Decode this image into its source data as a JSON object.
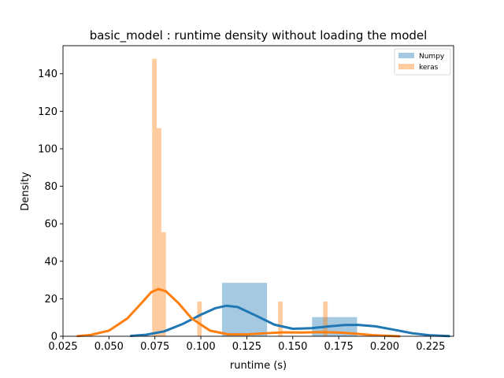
{
  "chart_data": {
    "type": "histogram+kde",
    "title": "basic_model : runtime density without loading the model",
    "xlabel": "runtime (s)",
    "ylabel": "Density",
    "xlim": [
      0.025,
      0.2375
    ],
    "ylim": [
      0,
      155
    ],
    "xticks": [
      0.025,
      0.05,
      0.075,
      0.1,
      0.125,
      0.15,
      0.175,
      0.2,
      0.225
    ],
    "xtick_labels": [
      "0.025",
      "0.050",
      "0.075",
      "0.100",
      "0.125",
      "0.150",
      "0.175",
      "0.200",
      "0.225"
    ],
    "yticks": [
      0,
      20,
      40,
      60,
      80,
      100,
      120,
      140
    ],
    "ytick_labels": [
      "0",
      "20",
      "40",
      "60",
      "80",
      "100",
      "120",
      "140"
    ],
    "grid": false,
    "legend_position": "top-right",
    "series": [
      {
        "name": "Numpy",
        "hist_color": "#1f77b4",
        "kde_color": "#1f77b4",
        "bars": [
          {
            "x0": 0.1115,
            "x1": 0.136,
            "height": 28.5
          },
          {
            "x0": 0.1605,
            "x1": 0.185,
            "height": 10.2
          }
        ],
        "kde": [
          [
            0.062,
            0.2
          ],
          [
            0.07,
            0.8
          ],
          [
            0.08,
            2.6
          ],
          [
            0.09,
            6.5
          ],
          [
            0.1,
            11.5
          ],
          [
            0.108,
            15.0
          ],
          [
            0.114,
            16.3
          ],
          [
            0.12,
            15.6
          ],
          [
            0.13,
            11.0
          ],
          [
            0.14,
            6.2
          ],
          [
            0.15,
            4.0
          ],
          [
            0.16,
            4.3
          ],
          [
            0.17,
            5.3
          ],
          [
            0.178,
            6.0
          ],
          [
            0.185,
            6.1
          ],
          [
            0.195,
            5.3
          ],
          [
            0.205,
            3.5
          ],
          [
            0.215,
            1.6
          ],
          [
            0.225,
            0.5
          ],
          [
            0.235,
            0.1
          ]
        ]
      },
      {
        "name": "keras",
        "hist_color": "#ff7f0e",
        "kde_color": "#ff7f0e",
        "bars": [
          {
            "x0": 0.0735,
            "x1": 0.076,
            "height": 148.0
          },
          {
            "x0": 0.076,
            "x1": 0.0785,
            "height": 111.0
          },
          {
            "x0": 0.0785,
            "x1": 0.081,
            "height": 55.5
          },
          {
            "x0": 0.098,
            "x1": 0.1005,
            "height": 18.5
          },
          {
            "x0": 0.142,
            "x1": 0.1445,
            "height": 18.5
          },
          {
            "x0": 0.1665,
            "x1": 0.169,
            "height": 18.5
          }
        ],
        "kde": [
          [
            0.033,
            0.1
          ],
          [
            0.04,
            0.7
          ],
          [
            0.05,
            3.0
          ],
          [
            0.06,
            9.5
          ],
          [
            0.068,
            18.0
          ],
          [
            0.073,
            23.5
          ],
          [
            0.077,
            25.2
          ],
          [
            0.081,
            24.0
          ],
          [
            0.088,
            17.5
          ],
          [
            0.095,
            9.5
          ],
          [
            0.105,
            3.0
          ],
          [
            0.115,
            1.0
          ],
          [
            0.125,
            1.0
          ],
          [
            0.135,
            1.6
          ],
          [
            0.145,
            2.1
          ],
          [
            0.155,
            2.0
          ],
          [
            0.165,
            2.2
          ],
          [
            0.175,
            2.0
          ],
          [
            0.185,
            1.3
          ],
          [
            0.195,
            0.5
          ],
          [
            0.203,
            0.2
          ],
          [
            0.208,
            0.0
          ]
        ]
      }
    ]
  }
}
